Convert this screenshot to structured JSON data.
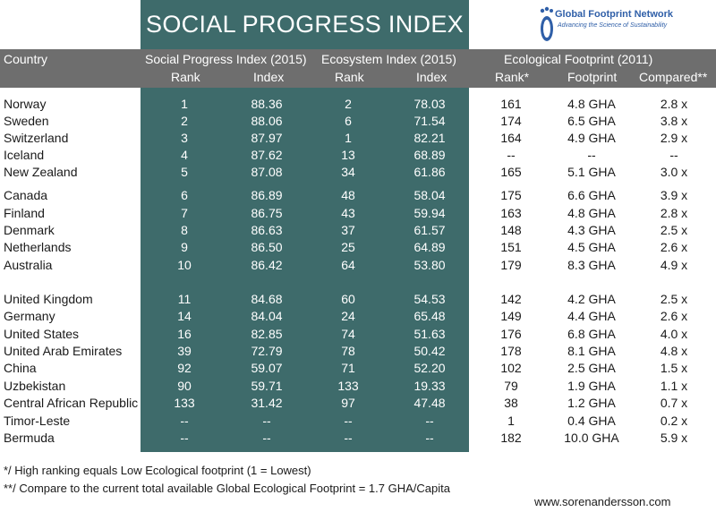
{
  "title": "SOCIAL PROGRESS INDEX",
  "logo": {
    "name": "Global Footprint Network",
    "tagline": "Advancing the Science of Sustainability"
  },
  "headers": {
    "country": "Country",
    "spi_group": "Social Progress Index (2015)",
    "eco_group": "Ecosystem Index (2015)",
    "ef_group": "Ecological Footprint (2011)",
    "spi_rank": "Rank",
    "spi_index": "Index",
    "eco_rank": "Rank",
    "eco_index": "Index",
    "ef_rank": "Rank*",
    "ef_footprint": "Footprint",
    "ef_compared": "Compared**"
  },
  "rows": [
    {
      "country": "Norway",
      "spi_rank": "1",
      "spi_index": "88.36",
      "eco_rank": "2",
      "eco_index": "78.03",
      "ef_rank": "161",
      "footprint": "4.8 GHA",
      "compared": "2.8 x"
    },
    {
      "country": "Sweden",
      "spi_rank": "2",
      "spi_index": "88.06",
      "eco_rank": "6",
      "eco_index": "71.54",
      "ef_rank": "174",
      "footprint": "6.5 GHA",
      "compared": "3.8 x"
    },
    {
      "country": "Switzerland",
      "spi_rank": "3",
      "spi_index": "87.97",
      "eco_rank": "1",
      "eco_index": "82.21",
      "ef_rank": "164",
      "footprint": "4.9 GHA",
      "compared": "2.9 x"
    },
    {
      "country": "Iceland",
      "spi_rank": "4",
      "spi_index": "87.62",
      "eco_rank": "13",
      "eco_index": "68.89",
      "ef_rank": "--",
      "footprint": "--",
      "compared": "--"
    },
    {
      "country": "New Zealand",
      "spi_rank": "5",
      "spi_index": "87.08",
      "eco_rank": "34",
      "eco_index": "61.86",
      "ef_rank": "165",
      "footprint": "5.1 GHA",
      "compared": "3.0 x"
    },
    {
      "country": "Canada",
      "spi_rank": "6",
      "spi_index": "86.89",
      "eco_rank": "48",
      "eco_index": "58.04",
      "ef_rank": "175",
      "footprint": "6.6 GHA",
      "compared": "3.9 x"
    },
    {
      "country": "Finland",
      "spi_rank": "7",
      "spi_index": "86.75",
      "eco_rank": "43",
      "eco_index": "59.94",
      "ef_rank": "163",
      "footprint": "4.8 GHA",
      "compared": "2.8 x"
    },
    {
      "country": "Denmark",
      "spi_rank": "8",
      "spi_index": "86.63",
      "eco_rank": "37",
      "eco_index": "61.57",
      "ef_rank": "148",
      "footprint": "4.3 GHA",
      "compared": "2.5 x"
    },
    {
      "country": "Netherlands",
      "spi_rank": "9",
      "spi_index": "86.50",
      "eco_rank": "25",
      "eco_index": "64.89",
      "ef_rank": "151",
      "footprint": "4.5 GHA",
      "compared": "2.6 x"
    },
    {
      "country": "Australia",
      "spi_rank": "10",
      "spi_index": "86.42",
      "eco_rank": "64",
      "eco_index": "53.80",
      "ef_rank": "179",
      "footprint": "8.3 GHA",
      "compared": "4.9 x"
    },
    {
      "country": "United Kingdom",
      "spi_rank": "11",
      "spi_index": "84.68",
      "eco_rank": "60",
      "eco_index": "54.53",
      "ef_rank": "142",
      "footprint": "4.2 GHA",
      "compared": "2.5 x"
    },
    {
      "country": "Germany",
      "spi_rank": "14",
      "spi_index": "84.04",
      "eco_rank": "24",
      "eco_index": "65.48",
      "ef_rank": "149",
      "footprint": "4.4 GHA",
      "compared": "2.6 x"
    },
    {
      "country": "United States",
      "spi_rank": "16",
      "spi_index": "82.85",
      "eco_rank": "74",
      "eco_index": "51.63",
      "ef_rank": "176",
      "footprint": "6.8 GHA",
      "compared": "4.0 x"
    },
    {
      "country": "United Arab Emirates",
      "spi_rank": "39",
      "spi_index": "72.79",
      "eco_rank": "78",
      "eco_index": "50.42",
      "ef_rank": "178",
      "footprint": "8.1 GHA",
      "compared": "4.8 x"
    },
    {
      "country": "China",
      "spi_rank": "92",
      "spi_index": "59.07",
      "eco_rank": "71",
      "eco_index": "52.20",
      "ef_rank": "102",
      "footprint": "2.5 GHA",
      "compared": "1.5 x"
    },
    {
      "country": "Uzbekistan",
      "spi_rank": "90",
      "spi_index": "59.71",
      "eco_rank": "133",
      "eco_index": "19.33",
      "ef_rank": "79",
      "footprint": "1.9 GHA",
      "compared": "1.1 x"
    },
    {
      "country": "Central African Republic",
      "spi_rank": "133",
      "spi_index": "31.42",
      "eco_rank": "97",
      "eco_index": "47.48",
      "ef_rank": "38",
      "footprint": "1.2 GHA",
      "compared": "0.7 x"
    },
    {
      "country": "Timor-Leste",
      "spi_rank": "--",
      "spi_index": "--",
      "eco_rank": "--",
      "eco_index": "--",
      "ef_rank": "1",
      "footprint": "0.4 GHA",
      "compared": "0.2 x"
    },
    {
      "country": "Bermuda",
      "spi_rank": "--",
      "spi_index": "--",
      "eco_rank": "--",
      "eco_index": "--",
      "ef_rank": "182",
      "footprint": "10.0 GHA",
      "compared": "5.9 x"
    }
  ],
  "footnotes": [
    "*/ High ranking equals Low Ecological footprint (1 = Lowest)",
    "**/ Compare to the current total available Global Ecological Footprint = 1.7 GHA/Capita"
  ],
  "website": "www.sorenandersson.com"
}
